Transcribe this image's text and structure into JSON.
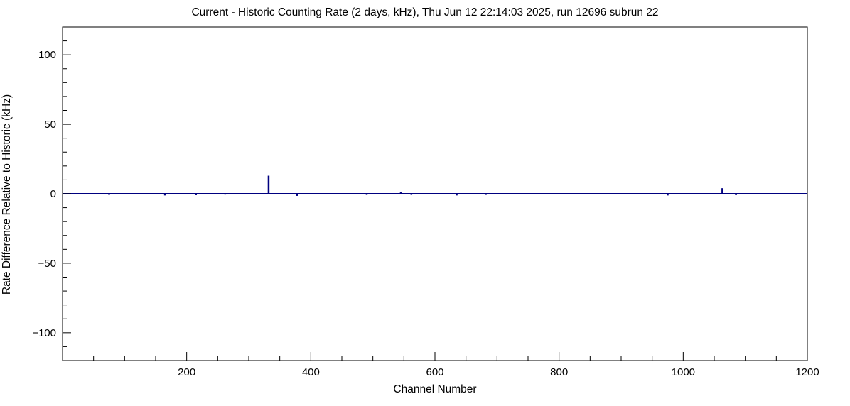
{
  "chart_data": {
    "type": "line",
    "title": "Current - Historic Counting Rate (2 days, kHz), Thu Jun 12 22:14:03 2025, run 12696 subrun 22",
    "xlabel": "Channel Number",
    "ylabel": "Rate Difference Relative to Historic (kHz)",
    "xlim": [
      0,
      1200
    ],
    "ylim": [
      -120,
      120
    ],
    "xticks": [
      200,
      400,
      600,
      800,
      1000,
      1200
    ],
    "yticks": [
      -100,
      -50,
      0,
      50,
      100
    ],
    "x_minor_step": 50,
    "y_minor_step": 10,
    "grid": false,
    "legend": false,
    "line_color": "#000080",
    "frame_color": "#000000",
    "baseline_value": 0,
    "spikes": [
      {
        "channel": 75,
        "value": -0.8
      },
      {
        "channel": 165,
        "value": -1.2
      },
      {
        "channel": 215,
        "value": -1.0
      },
      {
        "channel": 262,
        "value": -0.6
      },
      {
        "channel": 332,
        "value": 13.0
      },
      {
        "channel": 378,
        "value": -1.5
      },
      {
        "channel": 490,
        "value": -0.8
      },
      {
        "channel": 545,
        "value": 1.0
      },
      {
        "channel": 562,
        "value": -0.8
      },
      {
        "channel": 635,
        "value": -1.2
      },
      {
        "channel": 682,
        "value": -0.8
      },
      {
        "channel": 975,
        "value": -1.2
      },
      {
        "channel": 1063,
        "value": 4.0
      },
      {
        "channel": 1085,
        "value": -1.0
      }
    ]
  }
}
